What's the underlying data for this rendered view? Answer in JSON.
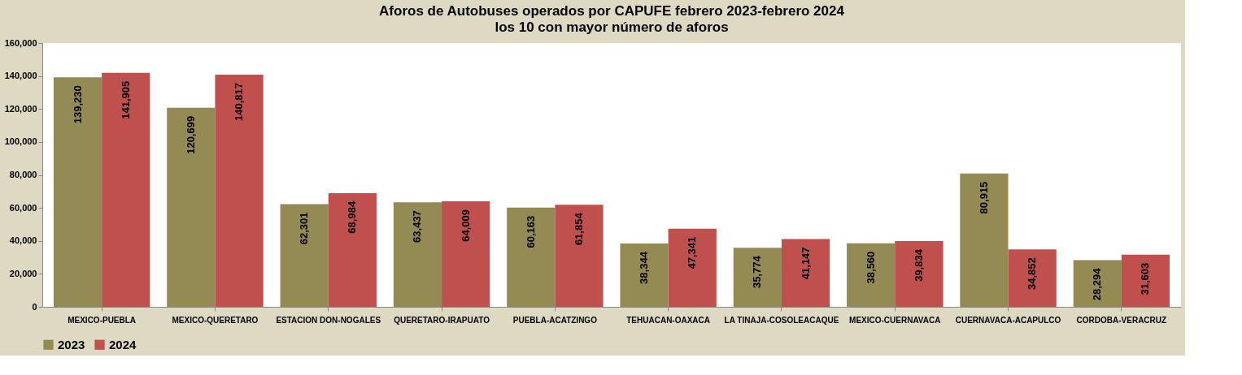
{
  "chart_data": {
    "type": "bar",
    "title": "Aforos de Autobuses operados por CAPUFE febrero 2023-febrero 2024",
    "subtitle": "los 10 con mayor número de aforos",
    "categories": [
      "MEXICO-PUEBLA",
      "MEXICO-QUERETARO",
      "ESTACION DON-NOGALES",
      "QUERETARO-IRAPUATO",
      "PUEBLA-ACATZINGO",
      "TEHUACAN-OAXACA",
      "LA TINAJA-COSOLEACAQUE",
      "MEXICO-CUERNAVACA",
      "CUERNAVACA-ACAPULCO",
      "CORDOBA-VERACRUZ"
    ],
    "series": [
      {
        "name": "2023",
        "color": "#948a54",
        "values": [
          139230,
          120699,
          62301,
          63437,
          60163,
          38344,
          35774,
          38560,
          80915,
          28294
        ],
        "value_labels": [
          "139,230",
          "120,699",
          "62,301",
          "63,437",
          "60,163",
          "38,344",
          "35,774",
          "38,560",
          "80,915",
          "28,294"
        ]
      },
      {
        "name": "2024",
        "color": "#c0504d",
        "values": [
          141905,
          140817,
          68984,
          64009,
          61854,
          47341,
          41147,
          39834,
          34852,
          31603
        ],
        "value_labels": [
          "141,905",
          "140,817",
          "68,984",
          "64,009",
          "61,854",
          "47,341",
          "41,147",
          "39,834",
          "34,852",
          "31,603"
        ]
      }
    ],
    "ylim": [
      0,
      160000
    ],
    "yticks": [
      0,
      {
        "value": 20000,
        "label": "20,000"
      },
      {
        "value": 40000,
        "label": "40,000"
      },
      {
        "value": 60000,
        "label": "60,000"
      },
      {
        "value": 80000,
        "label": "80,000"
      },
      {
        "value": 100000,
        "label": "100,000"
      },
      {
        "value": 120000,
        "label": "120,000"
      },
      {
        "value": 140000,
        "label": "140,000"
      },
      {
        "value": 160000,
        "label": "160,000"
      }
    ],
    "grid": false,
    "legend": "bottom"
  }
}
